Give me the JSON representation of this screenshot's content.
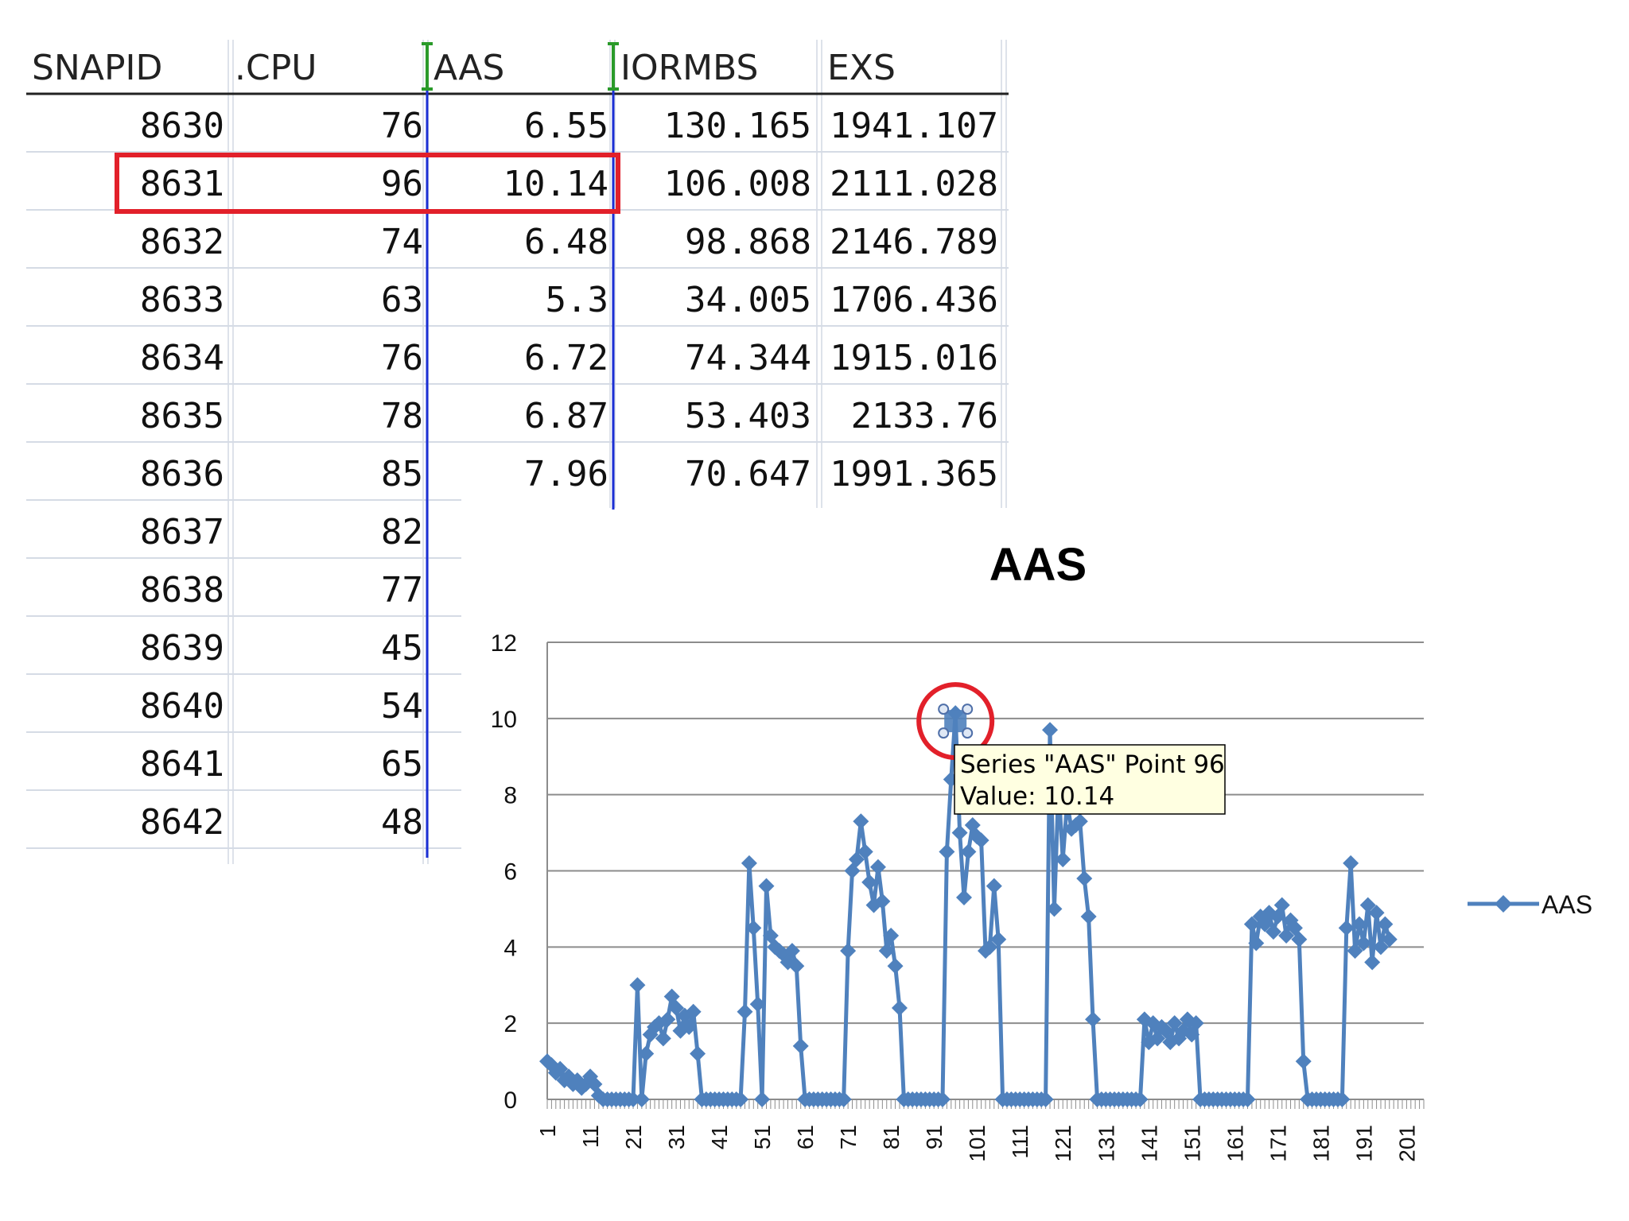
{
  "table": {
    "headers": [
      "SNAPID",
      ".CPU",
      "AAS",
      "IORMBS",
      "EXS"
    ],
    "rows": [
      [
        "8630",
        "76",
        "6.55",
        "130.165",
        "1941.107"
      ],
      [
        "8631",
        "96",
        "10.14",
        "106.008",
        "2111.028"
      ],
      [
        "8632",
        "74",
        "6.48",
        "98.868",
        "2146.789"
      ],
      [
        "8633",
        "63",
        "5.3",
        "34.005",
        "1706.436"
      ],
      [
        "8634",
        "76",
        "6.72",
        "74.344",
        "1915.016"
      ],
      [
        "8635",
        "78",
        "6.87",
        "53.403",
        "2133.76"
      ],
      [
        "8636",
        "85",
        "7.96",
        "70.647",
        "1991.365"
      ],
      [
        "8637",
        "82",
        "",
        "",
        ""
      ],
      [
        "8638",
        "77",
        "",
        "",
        ""
      ],
      [
        "8639",
        "45",
        "",
        "",
        ""
      ],
      [
        "8640",
        "54",
        "",
        "",
        ""
      ],
      [
        "8641",
        "65",
        "",
        "",
        ""
      ],
      [
        "8642",
        "48",
        "",
        "",
        ""
      ]
    ],
    "highlighted_row": "8631"
  },
  "tooltip": {
    "line1": "Series \"AAS\" Point 96",
    "line2": "Value: 10.14"
  },
  "colors": {
    "series": "#4f81bd",
    "highlight": "#e2202a",
    "tooltip_bg": "#ffffe1",
    "gridline": "#8c8c8c"
  },
  "chart_data": {
    "type": "line",
    "title": "AAS",
    "xlabel": "",
    "ylabel": "",
    "ylim": [
      0,
      12
    ],
    "yticks": [
      0,
      2,
      4,
      6,
      8,
      10,
      12
    ],
    "xlim": [
      1,
      205
    ],
    "xticks": [
      1,
      11,
      21,
      31,
      41,
      51,
      61,
      71,
      81,
      91,
      101,
      111,
      121,
      131,
      141,
      151,
      161,
      171,
      181,
      191,
      201
    ],
    "grid": true,
    "legend": "right",
    "highlight_point": {
      "x": 96,
      "y": 10.14
    },
    "series": [
      {
        "name": "AAS",
        "marker": "diamond",
        "points": [
          [
            1,
            1.0
          ],
          [
            2,
            0.9
          ],
          [
            3,
            0.7
          ],
          [
            4,
            0.8
          ],
          [
            5,
            0.5
          ],
          [
            6,
            0.6
          ],
          [
            7,
            0.4
          ],
          [
            8,
            0.5
          ],
          [
            9,
            0.3
          ],
          [
            10,
            0.4
          ],
          [
            11,
            0.6
          ],
          [
            12,
            0.4
          ],
          [
            13,
            0.1
          ],
          [
            14,
            0
          ],
          [
            15,
            0
          ],
          [
            16,
            0
          ],
          [
            17,
            0
          ],
          [
            18,
            0
          ],
          [
            19,
            0
          ],
          [
            20,
            0
          ],
          [
            21,
            0
          ],
          [
            22,
            3.0
          ],
          [
            23,
            0
          ],
          [
            24,
            1.2
          ],
          [
            25,
            1.7
          ],
          [
            26,
            1.9
          ],
          [
            27,
            2.0
          ],
          [
            28,
            1.6
          ],
          [
            29,
            2.1
          ],
          [
            30,
            2.7
          ],
          [
            31,
            2.4
          ],
          [
            32,
            1.8
          ],
          [
            33,
            2.2
          ],
          [
            34,
            1.9
          ],
          [
            35,
            2.3
          ],
          [
            36,
            1.2
          ],
          [
            37,
            0
          ],
          [
            38,
            0
          ],
          [
            39,
            0
          ],
          [
            40,
            0
          ],
          [
            41,
            0
          ],
          [
            42,
            0
          ],
          [
            43,
            0
          ],
          [
            44,
            0
          ],
          [
            45,
            0
          ],
          [
            46,
            0
          ],
          [
            47,
            2.3
          ],
          [
            48,
            6.2
          ],
          [
            49,
            4.5
          ],
          [
            50,
            2.5
          ],
          [
            51,
            0
          ],
          [
            52,
            5.6
          ],
          [
            53,
            4.3
          ],
          [
            54,
            4.0
          ],
          [
            55,
            3.9
          ],
          [
            56,
            3.8
          ],
          [
            57,
            3.6
          ],
          [
            58,
            3.9
          ],
          [
            59,
            3.5
          ],
          [
            60,
            1.4
          ],
          [
            61,
            0
          ],
          [
            62,
            0
          ],
          [
            63,
            0
          ],
          [
            64,
            0
          ],
          [
            65,
            0
          ],
          [
            66,
            0
          ],
          [
            67,
            0
          ],
          [
            68,
            0
          ],
          [
            69,
            0
          ],
          [
            70,
            0
          ],
          [
            71,
            3.9
          ],
          [
            72,
            6.0
          ],
          [
            73,
            6.3
          ],
          [
            74,
            7.3
          ],
          [
            75,
            6.5
          ],
          [
            76,
            5.7
          ],
          [
            77,
            5.1
          ],
          [
            78,
            6.1
          ],
          [
            79,
            5.2
          ],
          [
            80,
            3.9
          ],
          [
            81,
            4.3
          ],
          [
            82,
            3.5
          ],
          [
            83,
            2.4
          ],
          [
            84,
            0
          ],
          [
            85,
            0
          ],
          [
            86,
            0
          ],
          [
            87,
            0
          ],
          [
            88,
            0
          ],
          [
            89,
            0
          ],
          [
            90,
            0
          ],
          [
            91,
            0
          ],
          [
            92,
            0
          ],
          [
            93,
            0
          ],
          [
            94,
            6.5
          ],
          [
            95,
            8.4
          ],
          [
            96,
            10.14
          ],
          [
            97,
            7.0
          ],
          [
            98,
            5.3
          ],
          [
            99,
            6.5
          ],
          [
            100,
            7.2
          ],
          [
            101,
            6.9
          ],
          [
            102,
            6.8
          ],
          [
            103,
            3.9
          ],
          [
            104,
            4.0
          ],
          [
            105,
            5.6
          ],
          [
            106,
            4.2
          ],
          [
            107,
            0
          ],
          [
            108,
            0
          ],
          [
            109,
            0
          ],
          [
            110,
            0
          ],
          [
            111,
            0
          ],
          [
            112,
            0
          ],
          [
            113,
            0
          ],
          [
            114,
            0
          ],
          [
            115,
            0
          ],
          [
            116,
            0
          ],
          [
            117,
            0
          ],
          [
            118,
            9.7
          ],
          [
            119,
            5.0
          ],
          [
            120,
            8.2
          ],
          [
            121,
            6.3
          ],
          [
            122,
            7.8
          ],
          [
            123,
            7.1
          ],
          [
            124,
            7.2
          ],
          [
            125,
            7.3
          ],
          [
            126,
            5.8
          ],
          [
            127,
            4.8
          ],
          [
            128,
            2.1
          ],
          [
            129,
            0
          ],
          [
            130,
            0
          ],
          [
            131,
            0
          ],
          [
            132,
            0
          ],
          [
            133,
            0
          ],
          [
            134,
            0
          ],
          [
            135,
            0
          ],
          [
            136,
            0
          ],
          [
            137,
            0
          ],
          [
            138,
            0
          ],
          [
            139,
            0
          ],
          [
            140,
            2.1
          ],
          [
            141,
            1.5
          ],
          [
            142,
            2.0
          ],
          [
            143,
            1.6
          ],
          [
            144,
            1.9
          ],
          [
            145,
            1.8
          ],
          [
            146,
            1.5
          ],
          [
            147,
            2.0
          ],
          [
            148,
            1.6
          ],
          [
            149,
            1.8
          ],
          [
            150,
            2.1
          ],
          [
            151,
            1.7
          ],
          [
            152,
            2.0
          ],
          [
            153,
            0
          ],
          [
            154,
            0
          ],
          [
            155,
            0
          ],
          [
            156,
            0
          ],
          [
            157,
            0
          ],
          [
            158,
            0
          ],
          [
            159,
            0
          ],
          [
            160,
            0
          ],
          [
            161,
            0
          ],
          [
            162,
            0
          ],
          [
            163,
            0
          ],
          [
            164,
            0
          ],
          [
            165,
            4.6
          ],
          [
            166,
            4.1
          ],
          [
            167,
            4.8
          ],
          [
            168,
            4.6
          ],
          [
            169,
            4.9
          ],
          [
            170,
            4.4
          ],
          [
            171,
            4.8
          ],
          [
            172,
            5.1
          ],
          [
            173,
            4.3
          ],
          [
            174,
            4.7
          ],
          [
            175,
            4.5
          ],
          [
            176,
            4.2
          ],
          [
            177,
            1.0
          ],
          [
            178,
            0
          ],
          [
            179,
            0
          ],
          [
            180,
            0
          ],
          [
            181,
            0
          ],
          [
            182,
            0
          ],
          [
            183,
            0
          ],
          [
            184,
            0
          ],
          [
            185,
            0
          ],
          [
            186,
            0
          ],
          [
            187,
            4.5
          ],
          [
            188,
            6.2
          ],
          [
            189,
            3.9
          ],
          [
            190,
            4.6
          ],
          [
            191,
            4.1
          ],
          [
            192,
            5.1
          ],
          [
            193,
            3.6
          ],
          [
            194,
            4.9
          ],
          [
            195,
            4.0
          ],
          [
            196,
            4.6
          ],
          [
            197,
            4.2
          ]
        ]
      }
    ]
  }
}
